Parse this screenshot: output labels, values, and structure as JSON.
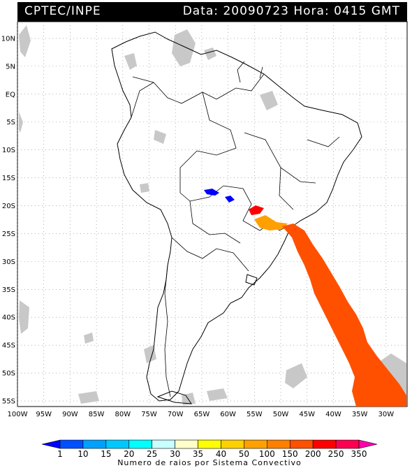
{
  "header": {
    "source": "CPTEC/INPE",
    "datetime": "Data: 20090723 Hora: 0415 GMT"
  },
  "map": {
    "lat_labels": [
      "10N",
      "5N",
      "EQ",
      "5S",
      "10S",
      "15S",
      "20S",
      "25S",
      "30S",
      "35S",
      "40S",
      "45S",
      "50S",
      "55S"
    ],
    "lat_values": [
      10,
      5,
      0,
      -5,
      -10,
      -15,
      -20,
      -25,
      -30,
      -35,
      -40,
      -45,
      -50,
      -55
    ],
    "lon_labels": [
      "100W",
      "95W",
      "90W",
      "85W",
      "80W",
      "75W",
      "70W",
      "65W",
      "60W",
      "55W",
      "50W",
      "45W",
      "40W",
      "35W",
      "30W"
    ],
    "lon_values": [
      -100,
      -95,
      -90,
      -85,
      -80,
      -75,
      -70,
      -65,
      -60,
      -55,
      -50,
      -45,
      -40,
      -35,
      -30
    ],
    "extent": {
      "lon_min": -100,
      "lon_max": -26,
      "lat_min": -56,
      "lat_max": 13
    },
    "colors": {
      "cloud": "#c8c8c8",
      "coast": "#000000",
      "grid": "#7f7f7f"
    }
  },
  "legend": {
    "labels": [
      "1",
      "10",
      "15",
      "20",
      "25",
      "30",
      "35",
      "40",
      "50",
      "100",
      "150",
      "200",
      "250",
      "350"
    ],
    "colors": [
      "#0000ff",
      "#0050ff",
      "#00a0ff",
      "#00c8ff",
      "#00ffff",
      "#c8ffff",
      "#ffffc8",
      "#ffff00",
      "#ffd000",
      "#ffa000",
      "#ff8000",
      "#ff5000",
      "#ff0000",
      "#ff0050",
      "#ff00aa"
    ],
    "title": "Numero de raios por Sistema Convectivo"
  }
}
